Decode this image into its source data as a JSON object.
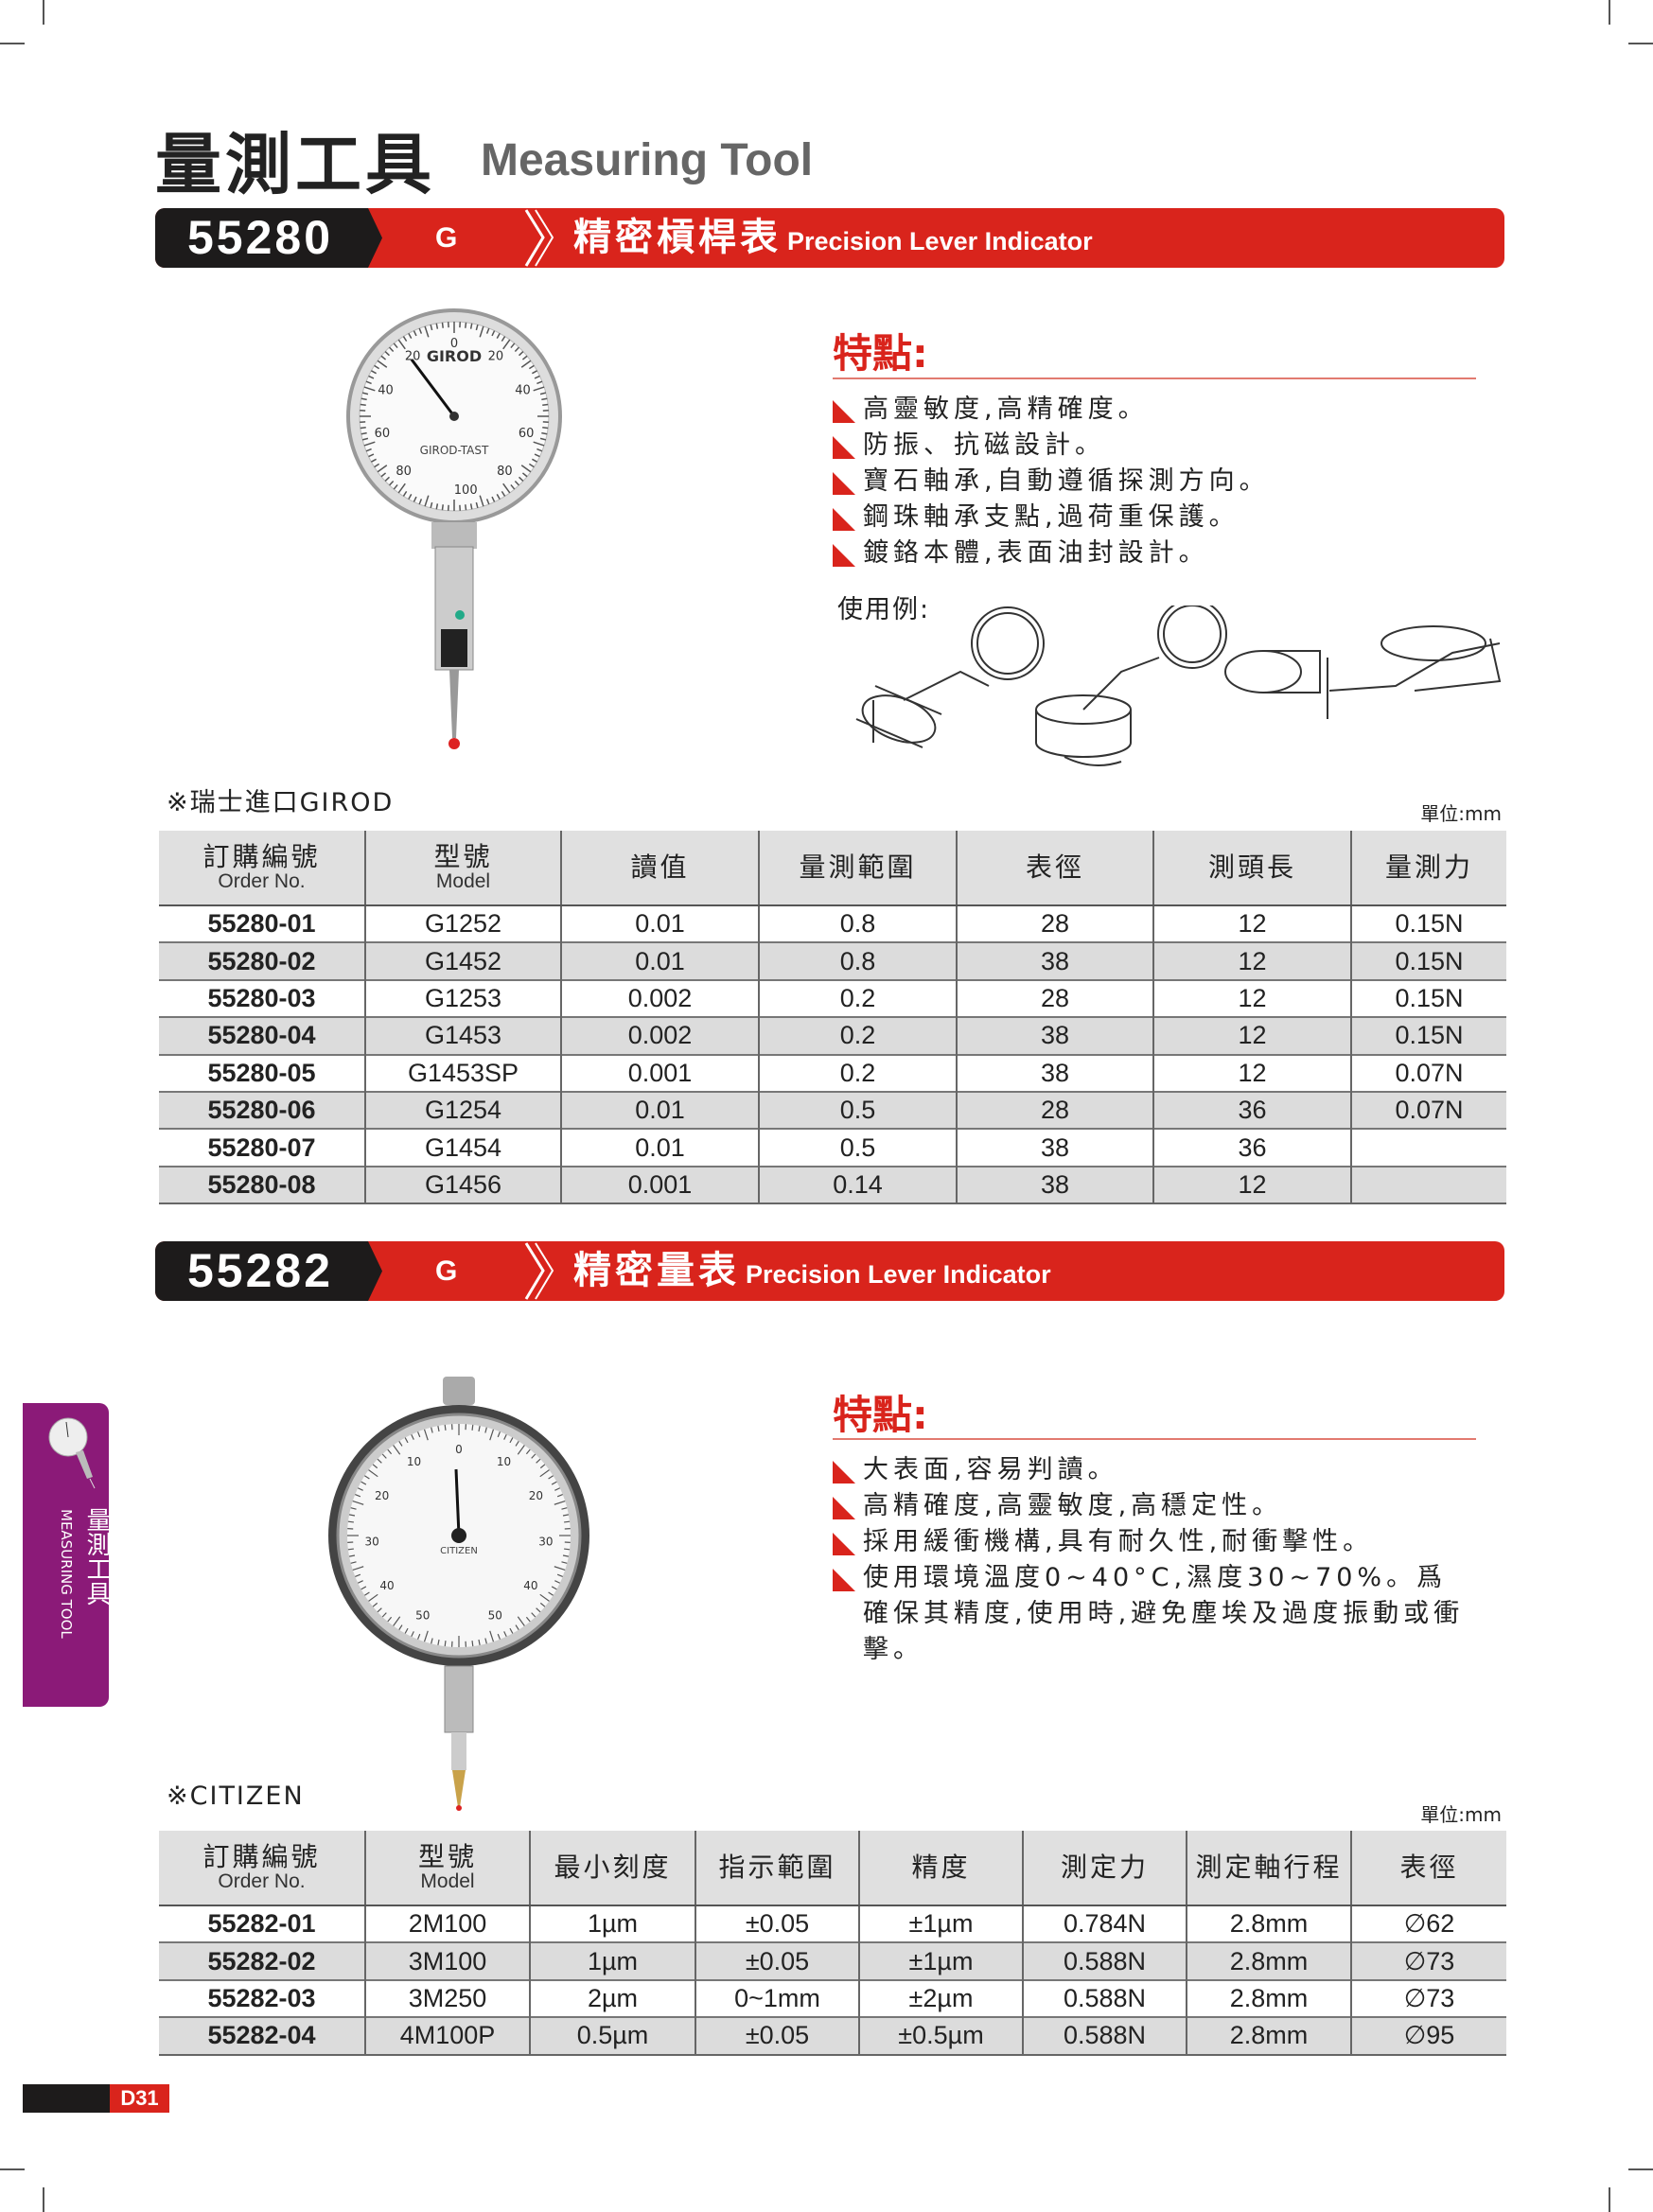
{
  "page": {
    "title_zh": "量測工具",
    "title_en": "Measuring Tool",
    "page_number": "D31",
    "side_tab": {
      "zh": "量測工具",
      "en": "MEASURING TOOL"
    }
  },
  "colors": {
    "accent_red": "#d9241c",
    "dark": "#1d1b1b",
    "side_tab_purple": "#8b1a78",
    "row_gray": "#dcdcdc"
  },
  "section1": {
    "code": "55280",
    "grade": "G",
    "name_zh": "精密槓桿表",
    "name_en": "Precision Lever Indicator",
    "features_title": "特點:",
    "features": [
      "高靈敏度,高精確度。",
      "防振、抗磁設計。",
      "寶石軸承,自動遵循探測方向。",
      "鋼珠軸承支點,過荷重保護。",
      "鍍鉻本體,表面油封設計。"
    ],
    "usage_label": "使用例:",
    "origin_note": "※瑞士進口GIROD",
    "unit": "單位:mm",
    "dial_text": {
      "brand": "GIROD",
      "model": "GIROD-TAST",
      "scale": [
        "0",
        "20",
        "20",
        "40",
        "40",
        "60",
        "60",
        "80",
        "80",
        "100"
      ]
    },
    "table": {
      "headers": [
        {
          "zh": "訂購編號",
          "en": "Order No."
        },
        {
          "zh": "型號",
          "en": "Model"
        },
        {
          "zh": "讀值"
        },
        {
          "zh": "量測範圍"
        },
        {
          "zh": "表徑"
        },
        {
          "zh": "測頭長"
        },
        {
          "zh": "量測力"
        }
      ],
      "rows": [
        [
          "55280-01",
          "G1252",
          "0.01",
          "0.8",
          "28",
          "12",
          "0.15N"
        ],
        [
          "55280-02",
          "G1452",
          "0.01",
          "0.8",
          "38",
          "12",
          "0.15N"
        ],
        [
          "55280-03",
          "G1253",
          "0.002",
          "0.2",
          "28",
          "12",
          "0.15N"
        ],
        [
          "55280-04",
          "G1453",
          "0.002",
          "0.2",
          "38",
          "12",
          "0.15N"
        ],
        [
          "55280-05",
          "G1453SP",
          "0.001",
          "0.2",
          "38",
          "12",
          "0.07N"
        ],
        [
          "55280-06",
          "G1254",
          "0.01",
          "0.5",
          "28",
          "36",
          "0.07N"
        ],
        [
          "55280-07",
          "G1454",
          "0.01",
          "0.5",
          "38",
          "36",
          ""
        ],
        [
          "55280-08",
          "G1456",
          "0.001",
          "0.14",
          "38",
          "12",
          ""
        ]
      ]
    }
  },
  "section2": {
    "code": "55282",
    "grade": "G",
    "name_zh": "精密量表",
    "name_en": "Precision Lever Indicator",
    "features_title": "特點:",
    "features": [
      "大表面,容易判讀。",
      "高精確度,高靈敏度,高穩定性。",
      "採用緩衝機構,具有耐久性,耐衝擊性。",
      "使用環境溫度0~40°C,濕度30~70%。爲確保其精度,使用時,避免塵埃及過度振動或衝擊。"
    ],
    "origin_note": "※CITIZEN",
    "unit": "單位:mm",
    "dial_text": {
      "brand": "CITIZEN",
      "scale": [
        "0",
        "10",
        "10",
        "20",
        "20",
        "30",
        "30",
        "40",
        "40",
        "50",
        "50"
      ]
    },
    "table": {
      "headers": [
        {
          "zh": "訂購編號",
          "en": "Order No."
        },
        {
          "zh": "型號",
          "en": "Model"
        },
        {
          "zh": "最小刻度"
        },
        {
          "zh": "指示範圍"
        },
        {
          "zh": "精度"
        },
        {
          "zh": "測定力"
        },
        {
          "zh": "測定軸行程"
        },
        {
          "zh": "表徑"
        }
      ],
      "rows": [
        [
          "55282-01",
          "2M100",
          "1µm",
          "±0.05",
          "±1µm",
          "0.784N",
          "2.8mm",
          "∅62"
        ],
        [
          "55282-02",
          "3M100",
          "1µm",
          "±0.05",
          "±1µm",
          "0.588N",
          "2.8mm",
          "∅73"
        ],
        [
          "55282-03",
          "3M250",
          "2µm",
          "0~1mm",
          "±2µm",
          "0.588N",
          "2.8mm",
          "∅73"
        ],
        [
          "55282-04",
          "4M100P",
          "0.5µm",
          "±0.05",
          "±0.5µm",
          "0.588N",
          "2.8mm",
          "∅95"
        ]
      ]
    }
  }
}
